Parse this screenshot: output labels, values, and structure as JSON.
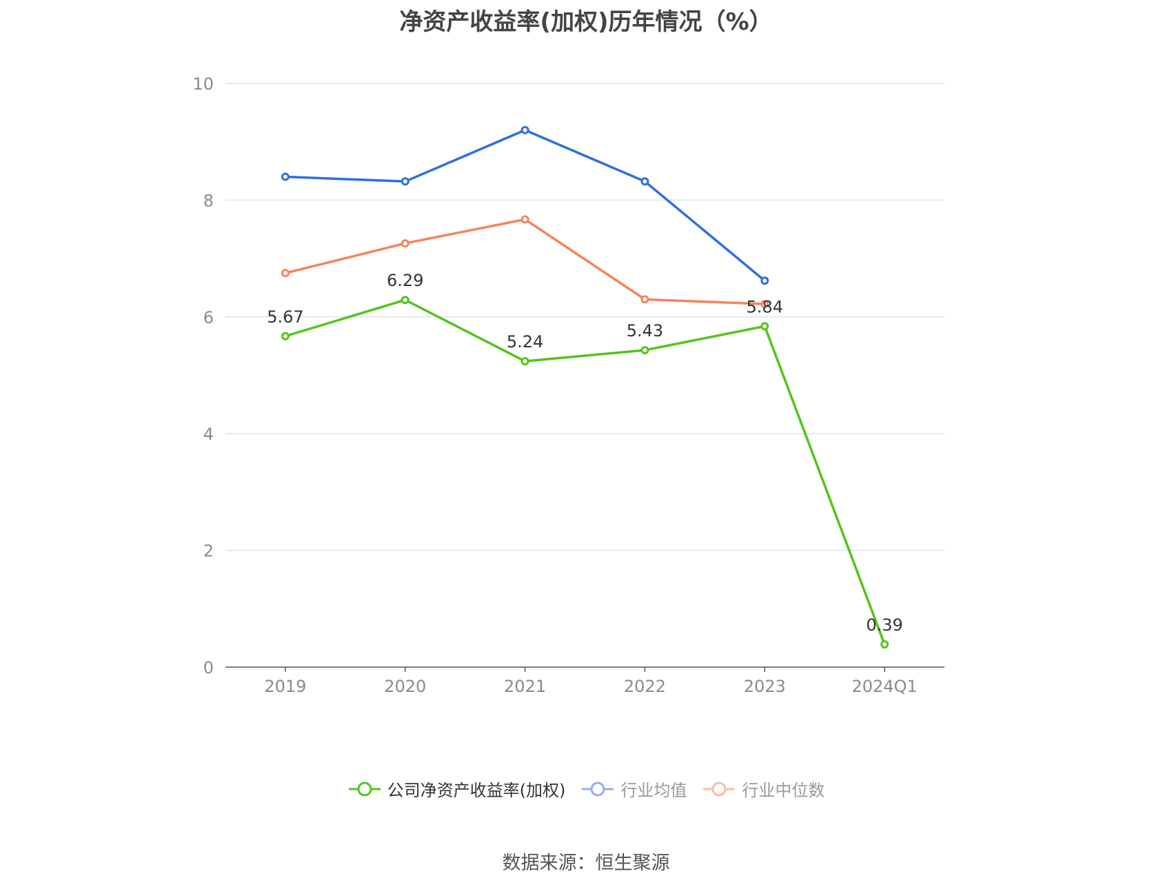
{
  "chart_data": {
    "type": "line",
    "title": "净资产收益率(加权)历年情况（%）",
    "categories": [
      "2019",
      "2020",
      "2021",
      "2022",
      "2023",
      "2024Q1"
    ],
    "ylim": [
      0,
      10
    ],
    "yticks": [
      "0",
      "2",
      "4",
      "6",
      "8",
      "10"
    ],
    "grid": true,
    "legend_position": "bottom",
    "series": [
      {
        "name": "公司净资产收益率(加权)",
        "color": "#52c41a",
        "values": [
          5.67,
          6.29,
          5.24,
          5.43,
          5.84,
          0.39
        ],
        "labels": [
          "5.67",
          "6.29",
          "5.24",
          "5.43",
          "5.84",
          "0.39"
        ]
      },
      {
        "name": "行业均值",
        "color": "#2e6fe0",
        "values": [
          8.4,
          8.32,
          9.2,
          8.32,
          6.62,
          null
        ]
      },
      {
        "name": "行业中位数",
        "color": "#f5845a",
        "values": [
          6.75,
          7.26,
          7.67,
          6.3,
          6.22,
          null
        ]
      }
    ]
  },
  "legend": {
    "items": [
      {
        "label": "公司净资产收益率(加权)",
        "color": "#52c41a",
        "text_color": "#333333"
      },
      {
        "label": "行业均值",
        "color": "#8fb0ef",
        "text_color": "#999999"
      },
      {
        "label": "行业中位数",
        "color": "#f8bda0",
        "text_color": "#999999"
      }
    ]
  },
  "source": "数据来源：恒生聚源"
}
